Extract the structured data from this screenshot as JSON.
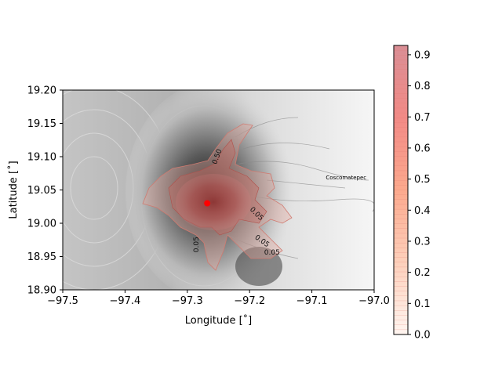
{
  "chart_data": {
    "type": "heatmap",
    "xlabel": "Longitude [˚]",
    "ylabel": "Latitude [˚]",
    "xlim": [
      -97.5,
      -97.0
    ],
    "ylim": [
      18.9,
      19.2
    ],
    "xticks": [
      -97.5,
      -97.4,
      -97.3,
      -97.2,
      -97.1,
      -97.0
    ],
    "xtick_labels": [
      "−97.5",
      "−97.4",
      "−97.3",
      "−97.2",
      "−97.1",
      "−97.0"
    ],
    "yticks": [
      18.9,
      18.95,
      19.0,
      19.05,
      19.1,
      19.15,
      19.2
    ],
    "ytick_labels": [
      "18.90",
      "18.95",
      "19.00",
      "19.05",
      "19.10",
      "19.15",
      "19.20"
    ],
    "colorbar": {
      "range": [
        0.0,
        0.93
      ],
      "ticks": [
        0.0,
        0.1,
        0.2,
        0.3,
        0.4,
        0.5,
        0.6,
        0.7,
        0.8,
        0.9
      ],
      "tick_labels": [
        "0.0",
        "0.1",
        "0.2",
        "0.3",
        "0.4",
        "0.5",
        "0.6",
        "0.7",
        "0.8",
        "0.9"
      ],
      "colormap": "Reds"
    },
    "vent": {
      "x": -97.268,
      "y": 19.03,
      "color": "#ff0000"
    },
    "contour_labels": [
      {
        "text": "0.50",
        "x": -97.252,
        "y": 19.1,
        "rotation": -70
      },
      {
        "text": "0.05",
        "x": -97.189,
        "y": 19.014,
        "rotation": 45
      },
      {
        "text": "0.05",
        "x": -97.18,
        "y": 18.973,
        "rotation": 35
      },
      {
        "text": "0.05",
        "x": -97.164,
        "y": 18.956,
        "rotation": 0
      },
      {
        "text": "0.05",
        "x": -97.285,
        "y": 18.968,
        "rotation": -90
      }
    ],
    "annotations": [
      {
        "text": "Coscomatepec",
        "x": -97.045,
        "y": 19.066
      }
    ],
    "background": "grayscale topography (hillshade)",
    "grid": false
  }
}
